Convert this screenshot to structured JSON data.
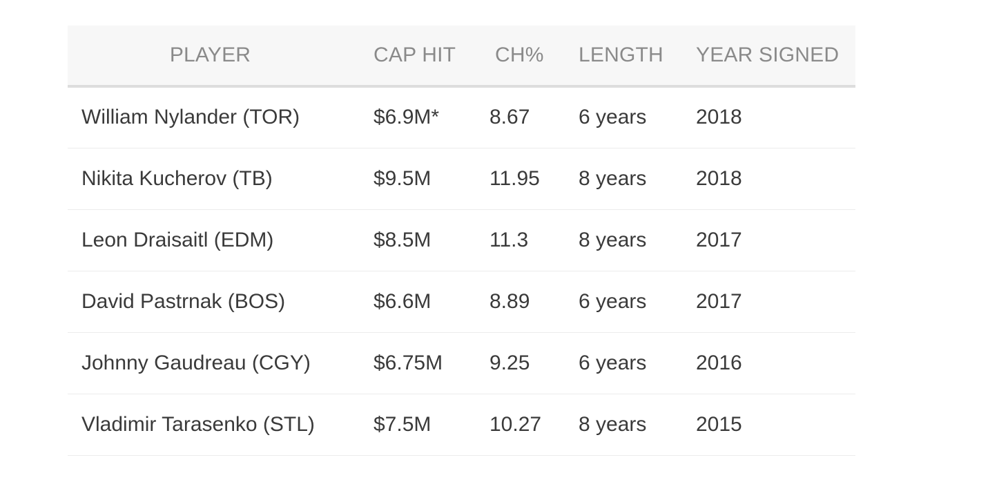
{
  "table": {
    "headers": [
      "PLAYER",
      "CAP HIT",
      "CH%",
      "LENGTH",
      "YEAR SIGNED"
    ],
    "rows": [
      [
        "William Nylander (TOR)",
        "$6.9M*",
        "8.67",
        "6 years",
        "2018"
      ],
      [
        "Nikita Kucherov (TB)",
        "$9.5M",
        "11.95",
        "8 years",
        "2018"
      ],
      [
        "Leon Draisaitl (EDM)",
        "$8.5M",
        "11.3",
        "8 years",
        "2017"
      ],
      [
        "David Pastrnak (BOS)",
        "$6.6M",
        "8.89",
        "6 years",
        "2017"
      ],
      [
        "Johnny Gaudreau (CGY)",
        "$6.75M",
        "9.25",
        "6 years",
        "2016"
      ],
      [
        "Vladimir Tarasenko (STL)",
        "$7.5M",
        "10.27",
        "8 years",
        "2015"
      ]
    ]
  },
  "colors": {
    "header_bg": "#f7f7f7",
    "header_text": "#8a8a8a",
    "body_text": "#3a3a3a",
    "header_rule": "#dddddd",
    "row_rule": "#ececec"
  }
}
